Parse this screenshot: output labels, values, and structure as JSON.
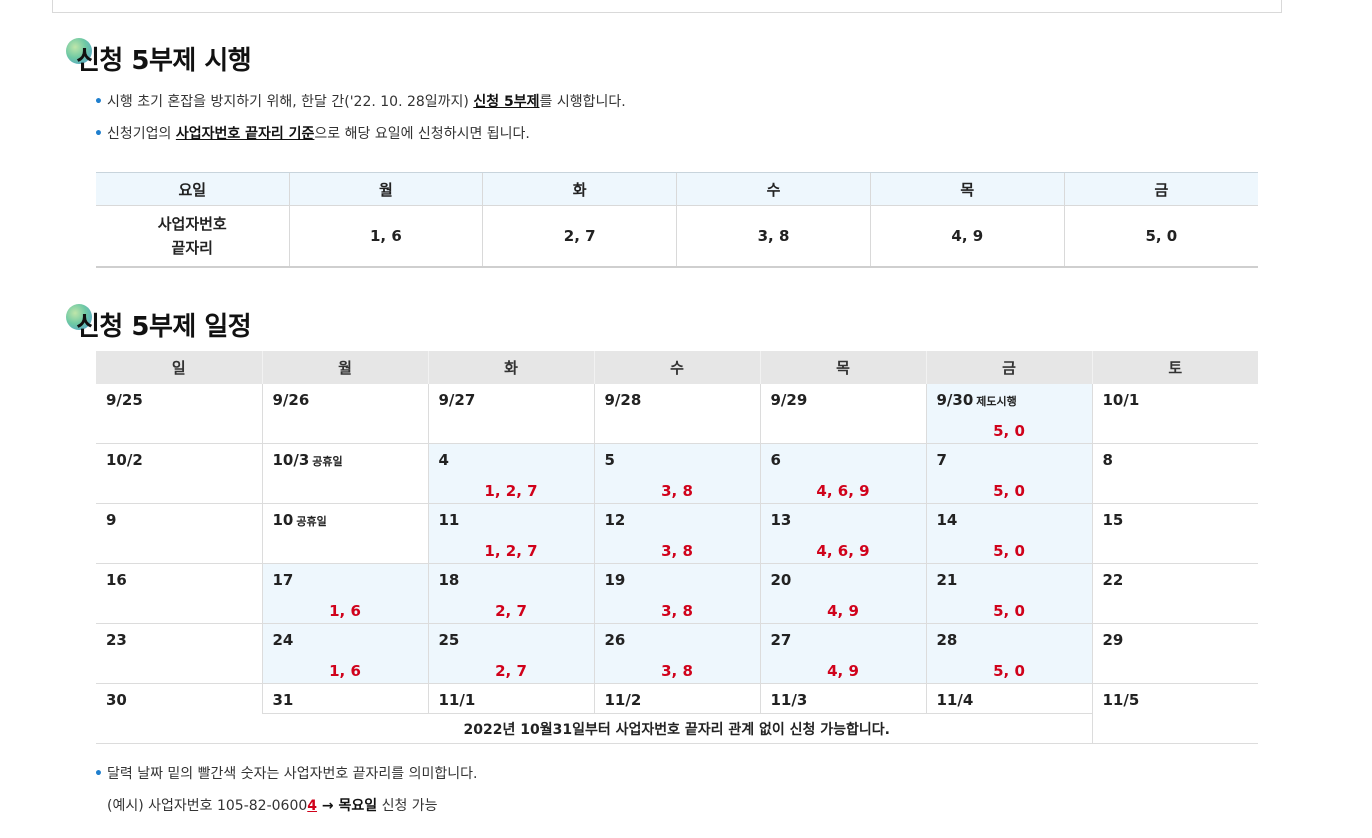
{
  "section1": {
    "title": "신청 5부제 시행",
    "bullet1": {
      "pre": "시행 초기 혼잡을 방지하기 위해, 한달 간('22. 10. 28일까지) ",
      "em": "신청 5부제",
      "post": "를 시행합니다."
    },
    "bullet2": {
      "pre": "신청기업의 ",
      "em": "사업자번호 끝자리 기준",
      "post": "으로 해당 요일에 신청하시면 됩니다."
    },
    "table": {
      "headers": [
        "요일",
        "월",
        "화",
        "수",
        "목",
        "금"
      ],
      "row_label_line1": "사업자번호",
      "row_label_line2": "끝자리",
      "values": [
        "1, 6",
        "2, 7",
        "3, 8",
        "4, 9",
        "5, 0"
      ]
    }
  },
  "section2": {
    "title": "신청 5부제 일정",
    "weekdays": [
      "일",
      "월",
      "화",
      "수",
      "목",
      "금",
      "토"
    ],
    "weeks": [
      [
        {
          "d": "9/25"
        },
        {
          "d": "9/26"
        },
        {
          "d": "9/27"
        },
        {
          "d": "9/28"
        },
        {
          "d": "9/29"
        },
        {
          "d": "9/30",
          "tag": "제도시행",
          "n": "5, 0",
          "hl": true
        },
        {
          "d": "10/1"
        }
      ],
      [
        {
          "d": "10/2"
        },
        {
          "d": "10/3",
          "tag": "공휴일"
        },
        {
          "d": "4",
          "n": "1, 2, 7",
          "hl": true
        },
        {
          "d": "5",
          "n": "3, 8",
          "hl": true
        },
        {
          "d": "6",
          "n": "4, 6, 9",
          "hl": true
        },
        {
          "d": "7",
          "n": "5, 0",
          "hl": true
        },
        {
          "d": "8"
        }
      ],
      [
        {
          "d": "9"
        },
        {
          "d": "10",
          "tag": "공휴일"
        },
        {
          "d": "11",
          "n": "1, 2, 7",
          "hl": true
        },
        {
          "d": "12",
          "n": "3, 8",
          "hl": true
        },
        {
          "d": "13",
          "n": "4, 6, 9",
          "hl": true
        },
        {
          "d": "14",
          "n": "5, 0",
          "hl": true
        },
        {
          "d": "15"
        }
      ],
      [
        {
          "d": "16"
        },
        {
          "d": "17",
          "n": "1, 6",
          "hl": true
        },
        {
          "d": "18",
          "n": "2, 7",
          "hl": true
        },
        {
          "d": "19",
          "n": "3, 8",
          "hl": true
        },
        {
          "d": "20",
          "n": "4, 9",
          "hl": true
        },
        {
          "d": "21",
          "n": "5, 0",
          "hl": true
        },
        {
          "d": "22"
        }
      ],
      [
        {
          "d": "23"
        },
        {
          "d": "24",
          "n": "1, 6",
          "hl": true
        },
        {
          "d": "25",
          "n": "2, 7",
          "hl": true
        },
        {
          "d": "26",
          "n": "3, 8",
          "hl": true
        },
        {
          "d": "27",
          "n": "4, 9",
          "hl": true
        },
        {
          "d": "28",
          "n": "5, 0",
          "hl": true
        },
        {
          "d": "29"
        }
      ]
    ],
    "last_week": {
      "sun": "30",
      "mid": [
        "31",
        "11/1",
        "11/2",
        "11/3",
        "11/4"
      ],
      "sat": "11/5"
    },
    "note": "2022년 10월31일부터 사업자번호 끝자리 관계 없이 신청 가능합니다."
  },
  "footer": {
    "bullet": "달력 날짜 밑의 빨간색 숫자는 사업자번호 끝자리를 의미합니다.",
    "example_pre": "(예시) 사업자번호 105-82-0600",
    "example_digit": "4",
    "example_arrow": " → ",
    "example_day": "목요일",
    "example_post": " 신청 가능"
  },
  "colors": {
    "accent_blue": "#1f7fce",
    "highlight": "#eef7fd",
    "red": "#d0021b"
  }
}
